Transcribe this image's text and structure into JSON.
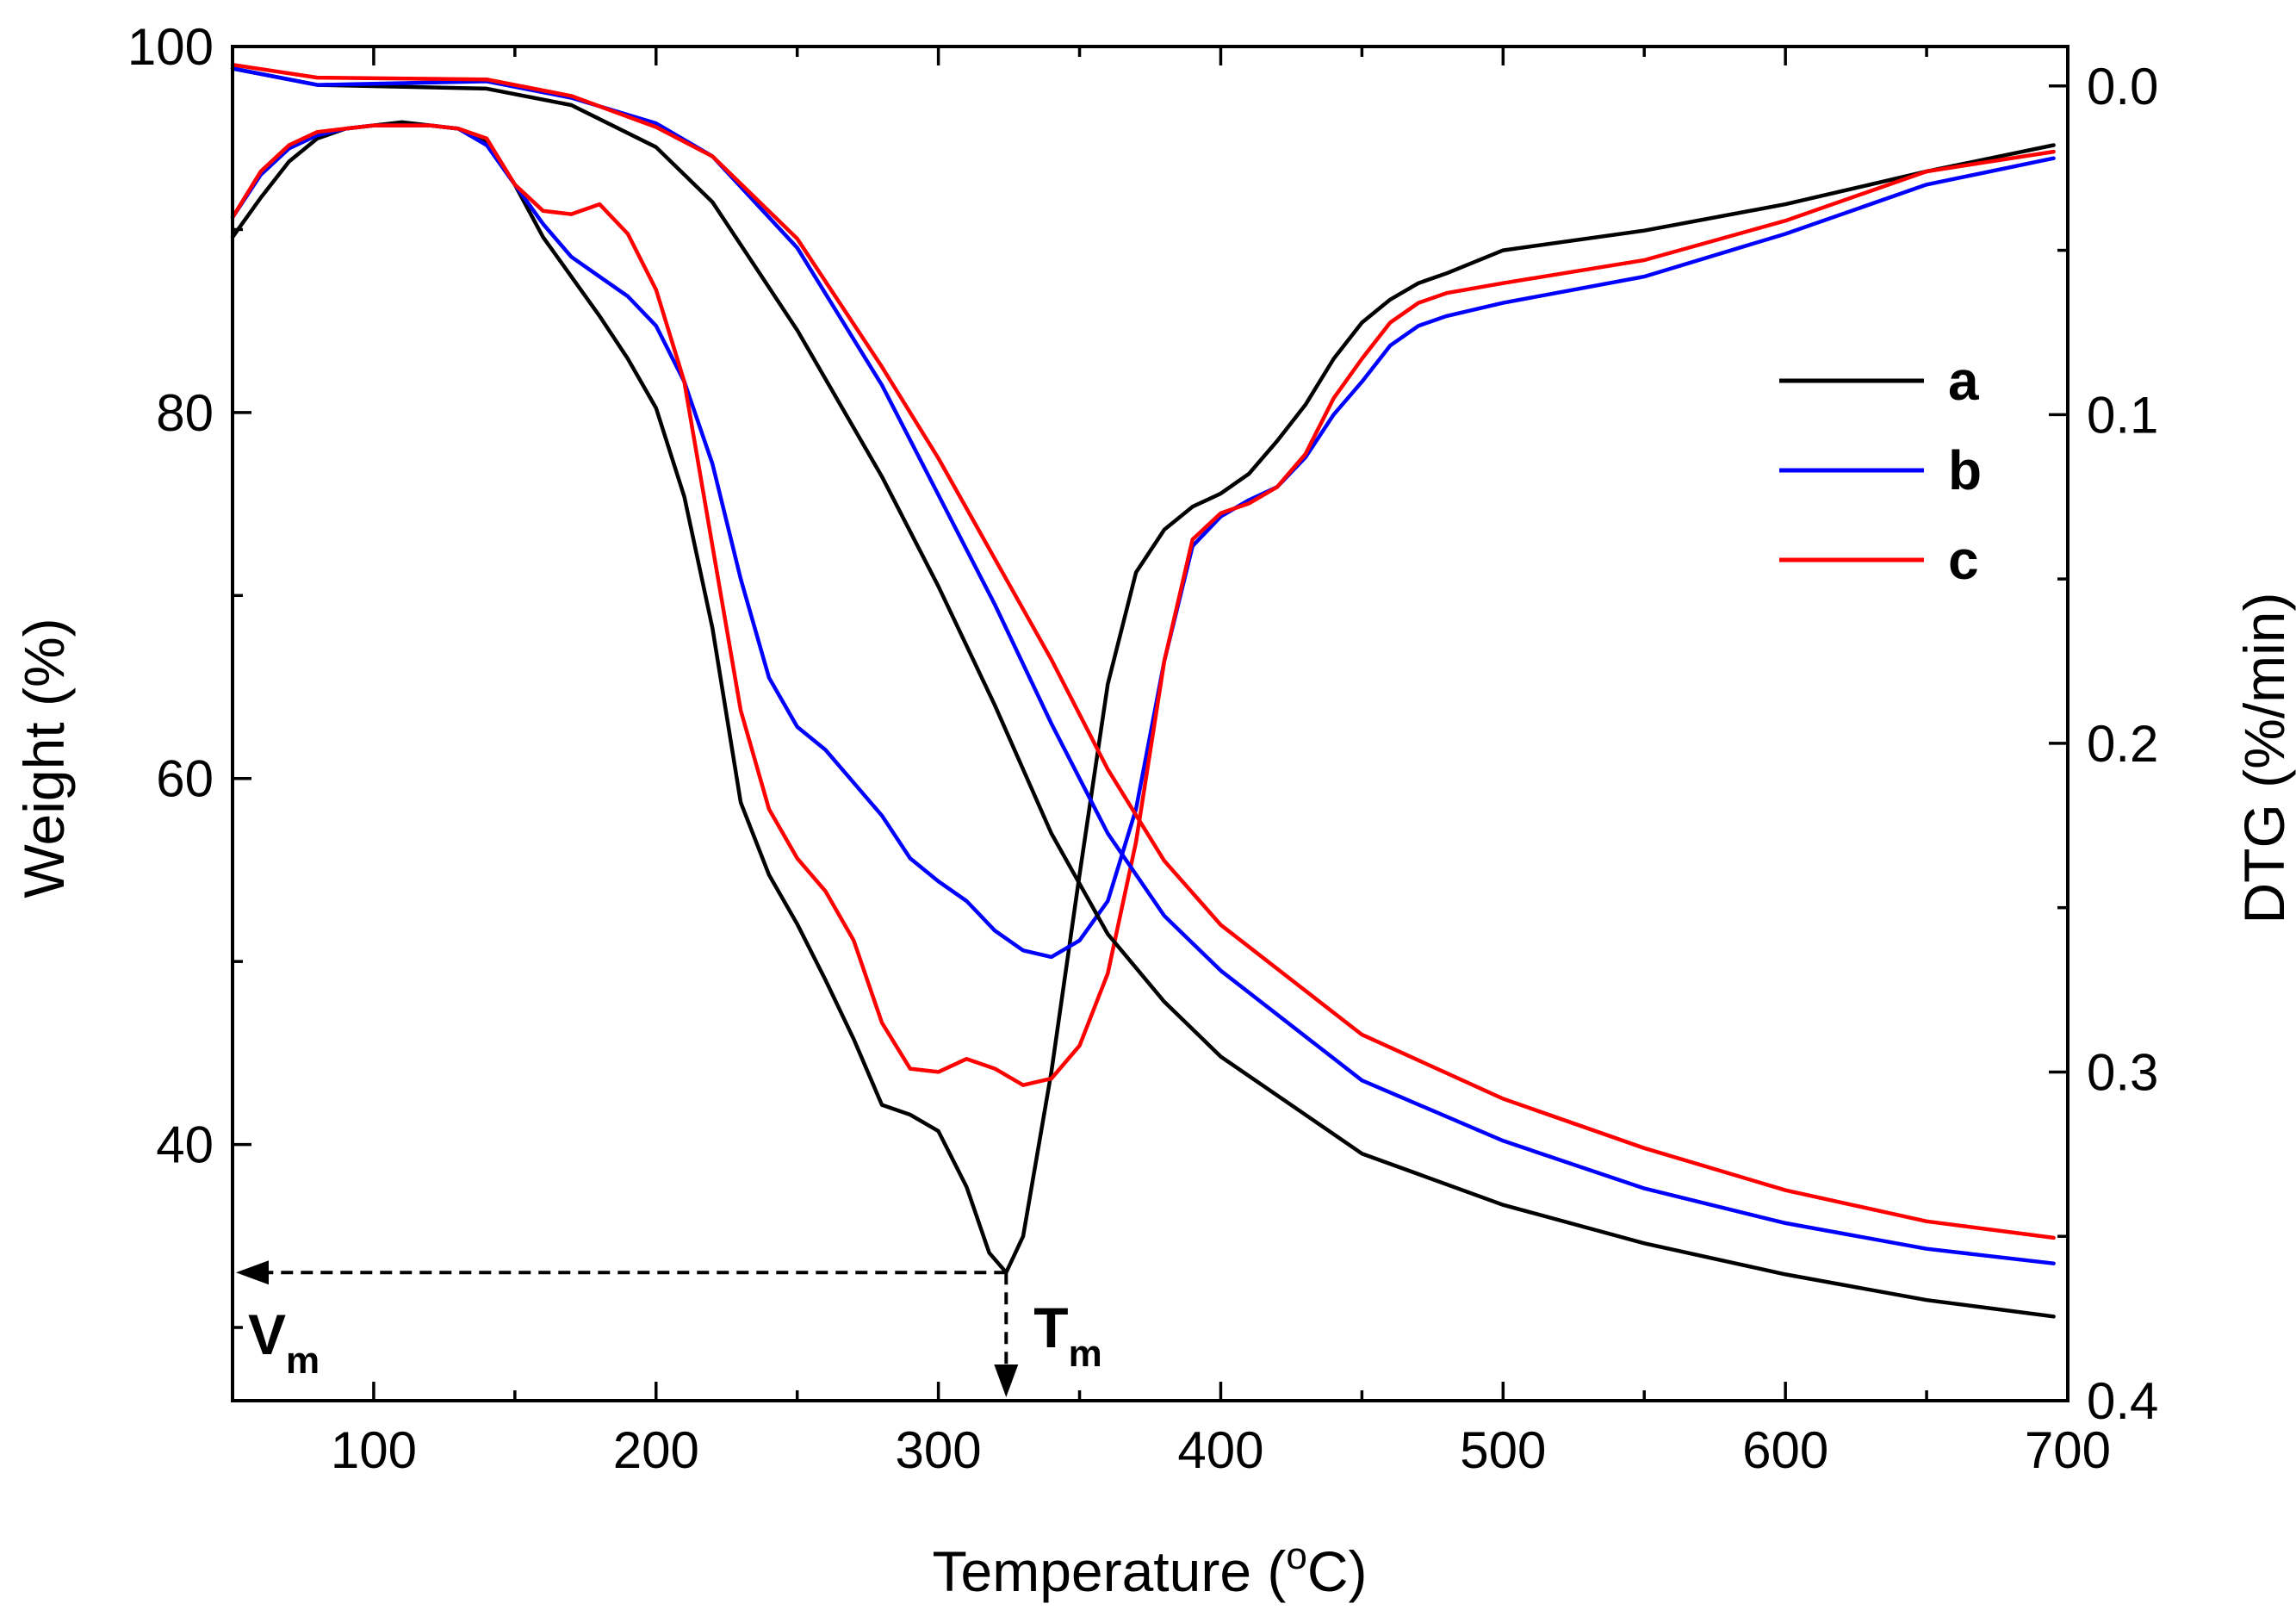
{
  "chart_data": {
    "type": "line",
    "xlabel": "Temperature (",
    "xlabel_sup": "o",
    "xlabel_tail": "C)",
    "ylabel_left": "Weight (%)",
    "ylabel_right": "DTG (%/min)",
    "xlim": [
      50,
      700
    ],
    "ylim_left": [
      26,
      100
    ],
    "ylim_right": [
      0.4,
      -0.012
    ],
    "x_ticks": [
      100,
      200,
      300,
      400,
      500,
      600,
      700
    ],
    "y_left_ticks": [
      40,
      60,
      80,
      100
    ],
    "y_right_ticks": [
      "0.0",
      "0.1",
      "0.2",
      "0.3",
      "0.4"
    ],
    "legend_position": "top-right",
    "legend": [
      {
        "name": "a",
        "color": "#000000"
      },
      {
        "name": "b",
        "color": "#0000ff"
      },
      {
        "name": "c",
        "color": "#ff0000"
      }
    ],
    "annotations": {
      "vm_main": "V",
      "vm_sub": "m",
      "tm_main": "T",
      "tm_sub": "m",
      "peak_temperature": 324,
      "peak_dtg": 0.361
    },
    "tg_series": [
      {
        "name": "a",
        "color": "#000000",
        "x": [
          50,
          80,
          140,
          170,
          200,
          220,
          250,
          280,
          300,
          320,
          340,
          360,
          380,
          400,
          450,
          500,
          550,
          600,
          650,
          695
        ],
        "y": [
          98.8,
          97.9,
          97.7,
          96.8,
          94.5,
          91.5,
          84.5,
          76.5,
          70.5,
          64.0,
          57.0,
          51.5,
          47.8,
          44.8,
          39.5,
          36.7,
          34.6,
          32.9,
          31.5,
          30.6
        ]
      },
      {
        "name": "b",
        "color": "#0000ff",
        "x": [
          50,
          80,
          140,
          170,
          200,
          220,
          250,
          280,
          300,
          320,
          340,
          360,
          380,
          400,
          450,
          500,
          550,
          600,
          650,
          695
        ],
        "y": [
          98.8,
          97.9,
          98.1,
          97.2,
          95.8,
          94.0,
          89.0,
          81.5,
          75.5,
          69.5,
          63.0,
          57.0,
          52.5,
          49.5,
          43.5,
          40.2,
          37.6,
          35.7,
          34.3,
          33.5
        ]
      },
      {
        "name": "c",
        "color": "#ff0000",
        "x": [
          50,
          80,
          140,
          170,
          200,
          220,
          250,
          280,
          300,
          320,
          340,
          360,
          380,
          400,
          450,
          500,
          550,
          600,
          650,
          695
        ],
        "y": [
          99.0,
          98.3,
          98.2,
          97.3,
          95.6,
          94.0,
          89.5,
          82.5,
          77.5,
          72.0,
          66.5,
          60.5,
          55.5,
          52.0,
          46.0,
          42.5,
          39.8,
          37.5,
          35.8,
          34.9
        ]
      }
    ],
    "dtg_series": [
      {
        "name": "a",
        "color": "#000000",
        "x": [
          50,
          60,
          70,
          80,
          90,
          100,
          110,
          120,
          130,
          140,
          150,
          160,
          170,
          180,
          190,
          200,
          210,
          220,
          230,
          240,
          250,
          260,
          270,
          280,
          290,
          300,
          310,
          318,
          324,
          330,
          340,
          350,
          360,
          370,
          380,
          390,
          400,
          410,
          420,
          430,
          440,
          450,
          460,
          470,
          480,
          500,
          550,
          600,
          650,
          695
        ],
        "y": [
          0.046,
          0.034,
          0.023,
          0.016,
          0.013,
          0.012,
          0.011,
          0.012,
          0.013,
          0.017,
          0.03,
          0.046,
          0.058,
          0.07,
          0.083,
          0.098,
          0.125,
          0.165,
          0.218,
          0.24,
          0.255,
          0.272,
          0.29,
          0.31,
          0.313,
          0.318,
          0.335,
          0.355,
          0.361,
          0.35,
          0.3,
          0.24,
          0.182,
          0.148,
          0.135,
          0.128,
          0.124,
          0.118,
          0.108,
          0.097,
          0.083,
          0.072,
          0.065,
          0.06,
          0.057,
          0.05,
          0.044,
          0.036,
          0.026,
          0.018
        ]
      },
      {
        "name": "b",
        "color": "#0000ff",
        "x": [
          50,
          60,
          70,
          80,
          90,
          100,
          110,
          120,
          130,
          140,
          150,
          160,
          170,
          180,
          190,
          200,
          210,
          220,
          230,
          240,
          250,
          260,
          270,
          280,
          290,
          300,
          310,
          320,
          330,
          340,
          350,
          360,
          370,
          380,
          390,
          400,
          410,
          420,
          430,
          440,
          450,
          460,
          470,
          480,
          500,
          550,
          600,
          650,
          695
        ],
        "y": [
          0.04,
          0.027,
          0.019,
          0.015,
          0.013,
          0.012,
          0.012,
          0.012,
          0.013,
          0.018,
          0.03,
          0.042,
          0.052,
          0.058,
          0.064,
          0.073,
          0.09,
          0.115,
          0.15,
          0.18,
          0.195,
          0.202,
          0.212,
          0.222,
          0.235,
          0.242,
          0.248,
          0.257,
          0.263,
          0.265,
          0.26,
          0.248,
          0.22,
          0.175,
          0.14,
          0.131,
          0.126,
          0.122,
          0.113,
          0.1,
          0.09,
          0.079,
          0.073,
          0.07,
          0.066,
          0.058,
          0.045,
          0.03,
          0.022
        ]
      },
      {
        "name": "c",
        "color": "#ff0000",
        "x": [
          50,
          60,
          70,
          80,
          90,
          100,
          110,
          120,
          130,
          140,
          150,
          160,
          170,
          180,
          190,
          200,
          210,
          220,
          230,
          240,
          250,
          260,
          270,
          280,
          290,
          300,
          310,
          320,
          330,
          340,
          350,
          360,
          370,
          380,
          390,
          400,
          410,
          420,
          430,
          440,
          450,
          460,
          470,
          480,
          500,
          550,
          600,
          650,
          695
        ],
        "y": [
          0.04,
          0.026,
          0.018,
          0.014,
          0.013,
          0.012,
          0.012,
          0.012,
          0.013,
          0.016,
          0.03,
          0.038,
          0.039,
          0.036,
          0.045,
          0.062,
          0.09,
          0.14,
          0.19,
          0.22,
          0.235,
          0.245,
          0.26,
          0.285,
          0.299,
          0.3,
          0.296,
          0.299,
          0.304,
          0.302,
          0.292,
          0.27,
          0.23,
          0.175,
          0.138,
          0.13,
          0.127,
          0.122,
          0.112,
          0.095,
          0.083,
          0.072,
          0.066,
          0.063,
          0.06,
          0.053,
          0.041,
          0.026,
          0.02
        ]
      }
    ]
  }
}
